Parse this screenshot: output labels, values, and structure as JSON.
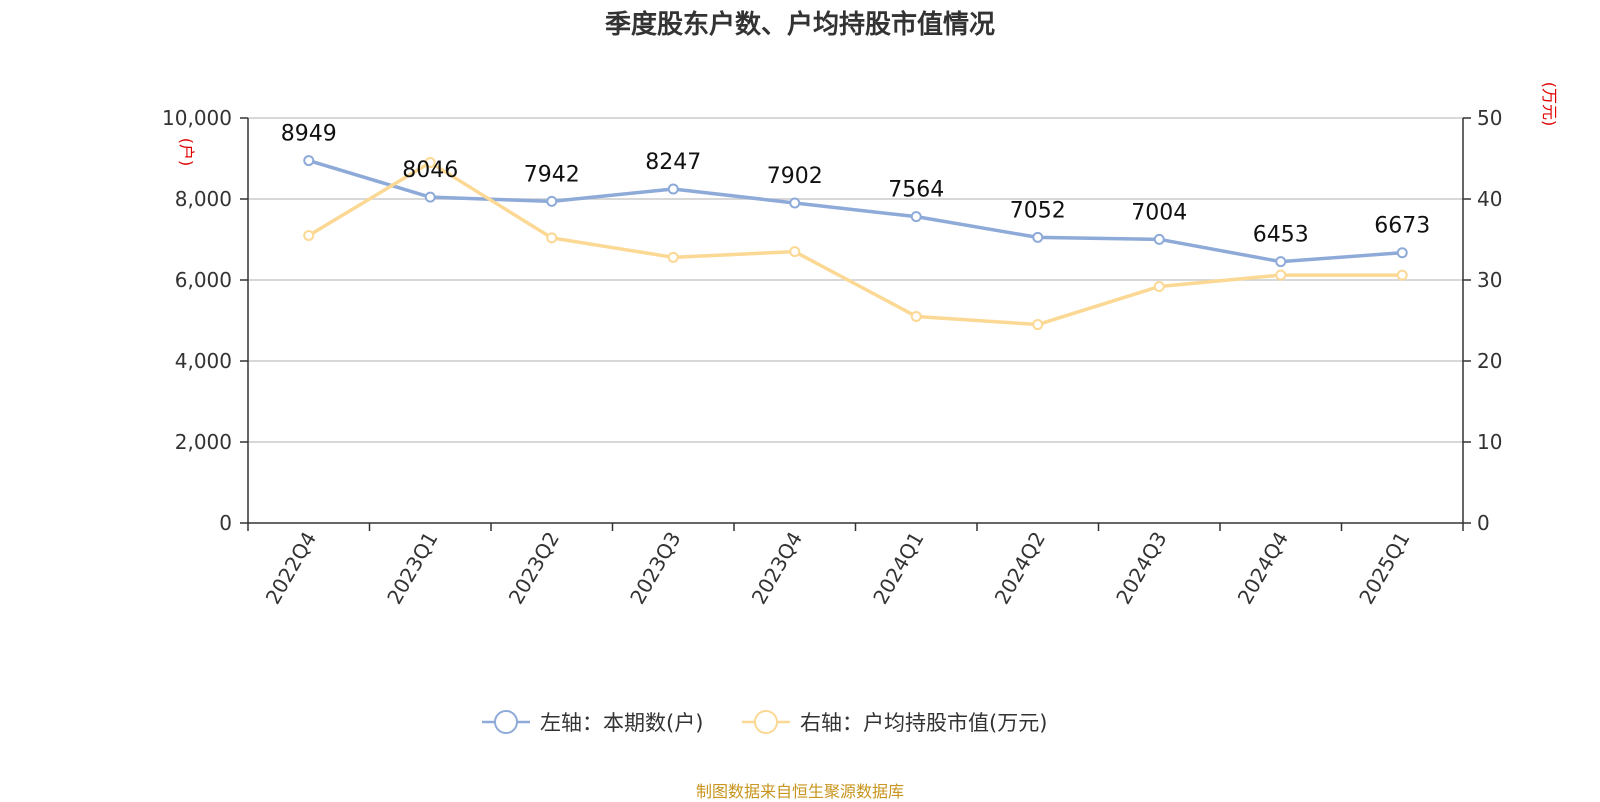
{
  "chart_data": {
    "type": "line",
    "title": "季度股东户数、户均持股市值情况",
    "categories": [
      "2022Q4",
      "2023Q1",
      "2023Q2",
      "2023Q3",
      "2023Q4",
      "2024Q1",
      "2024Q2",
      "2024Q3",
      "2024Q4",
      "2025Q1"
    ],
    "left_axis": {
      "unit": "(户)",
      "ylim": [
        0,
        10000
      ],
      "ticks": [
        "0",
        "2,000",
        "4,000",
        "6,000",
        "8,000",
        "10,000"
      ]
    },
    "right_axis": {
      "unit": "(万元)",
      "ylim": [
        0,
        50
      ],
      "ticks": [
        "0",
        "10",
        "20",
        "30",
        "40",
        "50"
      ]
    },
    "series": [
      {
        "name": "左轴：本期数(户)",
        "axis": "left",
        "color": "#8eaad8",
        "values": [
          8949,
          8046,
          7942,
          8247,
          7902,
          7564,
          7052,
          7004,
          6453,
          6673
        ],
        "labels": [
          "8949",
          "8046",
          "7942",
          "8247",
          "7902",
          "7564",
          "7052",
          "7004",
          "6453",
          "6673"
        ]
      },
      {
        "name": "右轴：户均持股市值(万元)",
        "axis": "right",
        "color": "#fbd894",
        "values": [
          35.5,
          44.5,
          35.2,
          32.8,
          33.5,
          25.5,
          24.5,
          29.2,
          30.6,
          30.6
        ]
      }
    ],
    "grid": true,
    "legend_position": "bottom"
  },
  "source": "制图数据来自恒生聚源数据库"
}
